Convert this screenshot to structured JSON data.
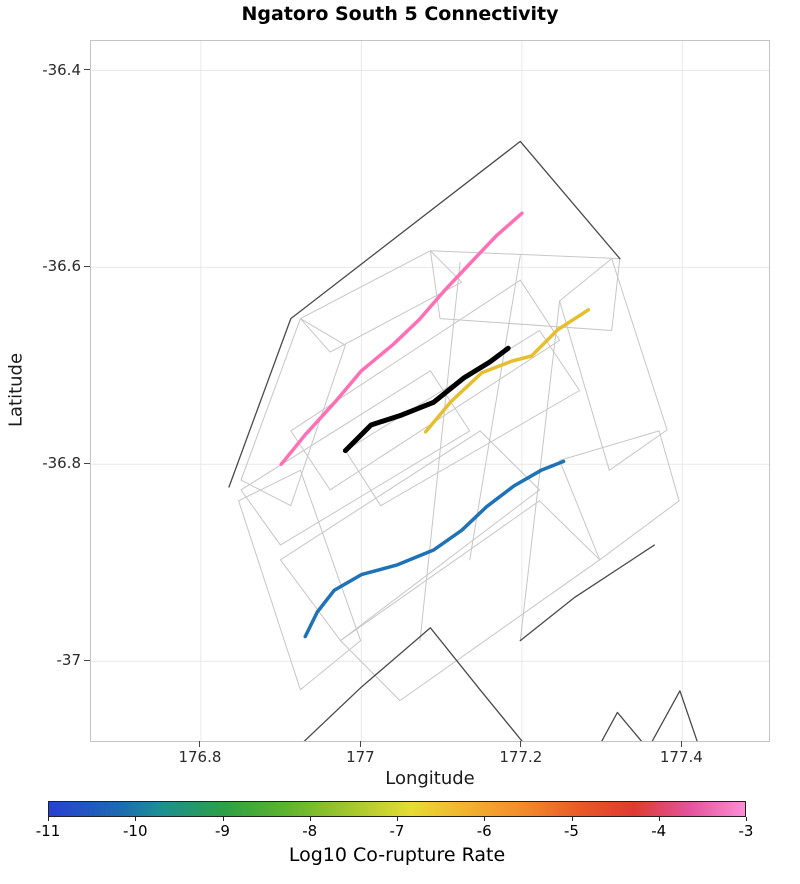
{
  "chart_data": {
    "type": "line",
    "title": "Ngatoro South 5 Connectivity",
    "axes": {
      "xlabel": "Longitude",
      "ylabel": "Latitude",
      "xlim": [
        176.663,
        177.508
      ],
      "ylim": [
        -37.081,
        -36.37
      ],
      "x_ticks": [
        {
          "value": 176.8,
          "label": "176.8"
        },
        {
          "value": 177.0,
          "label": "177"
        },
        {
          "value": 177.2,
          "label": "177.2"
        },
        {
          "value": 177.4,
          "label": "177.4"
        }
      ],
      "y_ticks": [
        {
          "value": -36.4,
          "label": "-36.4"
        },
        {
          "value": -36.6,
          "label": "-36.6"
        },
        {
          "value": -36.8,
          "label": "-36.8"
        },
        {
          "value": -37.0,
          "label": "-37"
        }
      ],
      "grid": true,
      "grid_color": "#e9e9e9"
    },
    "series": [
      {
        "name": "co-rupture-fault-pink",
        "color": "#ff6fb5",
        "width": 3.5,
        "points": [
          [
            176.9,
            -36.8
          ],
          [
            176.93,
            -36.77
          ],
          [
            176.968,
            -36.736
          ],
          [
            177.0,
            -36.705
          ],
          [
            177.04,
            -36.678
          ],
          [
            177.072,
            -36.653
          ],
          [
            177.103,
            -36.624
          ],
          [
            177.133,
            -36.598
          ],
          [
            177.168,
            -36.568
          ],
          [
            177.2,
            -36.545
          ]
        ]
      },
      {
        "name": "co-rupture-fault-gold",
        "color": "#e6bf2f",
        "width": 3.5,
        "points": [
          [
            177.08,
            -36.767
          ],
          [
            177.112,
            -36.736
          ],
          [
            177.15,
            -36.707
          ],
          [
            177.188,
            -36.695
          ],
          [
            177.212,
            -36.69
          ],
          [
            177.245,
            -36.663
          ],
          [
            177.283,
            -36.643
          ]
        ]
      },
      {
        "name": "co-rupture-fault-blue",
        "color": "#1f72b8",
        "width": 3.5,
        "points": [
          [
            176.93,
            -36.975
          ],
          [
            176.945,
            -36.95
          ],
          [
            176.966,
            -36.928
          ],
          [
            177.0,
            -36.912
          ],
          [
            177.045,
            -36.902
          ],
          [
            177.09,
            -36.887
          ],
          [
            177.125,
            -36.867
          ],
          [
            177.156,
            -36.843
          ],
          [
            177.19,
            -36.822
          ],
          [
            177.224,
            -36.806
          ],
          [
            177.252,
            -36.797
          ]
        ]
      },
      {
        "name": "target-fault-ngatoro-south-5",
        "color": "#000000",
        "width": 5,
        "points": [
          [
            176.98,
            -36.786
          ],
          [
            177.012,
            -36.76
          ],
          [
            177.05,
            -36.75
          ],
          [
            177.09,
            -36.737
          ],
          [
            177.128,
            -36.712
          ],
          [
            177.16,
            -36.696
          ],
          [
            177.183,
            -36.682
          ]
        ]
      }
    ],
    "outlines": {
      "dark_color": "#4a4a4a",
      "light_color": "#c6c6c6",
      "dark": [
        {
          "shape": "polyline",
          "points": [
            [
              176.835,
              -36.823
            ],
            [
              176.912,
              -36.652
            ],
            [
              177.198,
              -36.472
            ],
            [
              177.322,
              -36.591
            ]
          ]
        },
        {
          "shape": "polyline",
          "points": [
            [
              176.924,
              -37.085
            ],
            [
              176.999,
              -37.027
            ],
            [
              177.086,
              -36.966
            ],
            [
              177.148,
              -37.029
            ],
            [
              177.204,
              -37.085
            ]
          ]
        },
        {
          "shape": "polyline",
          "points": [
            [
              177.198,
              -36.979
            ],
            [
              177.266,
              -36.935
            ],
            [
              177.365,
              -36.882
            ]
          ]
        },
        {
          "shape": "polyline",
          "points": [
            [
              177.297,
              -37.085
            ],
            [
              177.319,
              -37.052
            ],
            [
              177.353,
              -37.085
            ]
          ]
        },
        {
          "shape": "polyline",
          "points": [
            [
              177.36,
              -37.085
            ],
            [
              177.397,
              -37.03
            ],
            [
              177.42,
              -37.085
            ]
          ]
        }
      ],
      "light": [
        {
          "shape": "polygon",
          "points": [
            [
              176.85,
              -36.816
            ],
            [
              176.924,
              -36.652
            ],
            [
              176.98,
              -36.679
            ],
            [
              176.912,
              -36.842
            ]
          ]
        },
        {
          "shape": "polygon",
          "points": [
            [
              176.924,
              -36.652
            ],
            [
              177.086,
              -36.583
            ],
            [
              177.125,
              -36.615
            ],
            [
              176.961,
              -36.686
            ]
          ]
        },
        {
          "shape": "polygon",
          "points": [
            [
              177.086,
              -36.583
            ],
            [
              177.322,
              -36.591
            ],
            [
              177.312,
              -36.664
            ],
            [
              177.098,
              -36.652
            ]
          ]
        },
        {
          "shape": "polygon",
          "points": [
            [
              177.312,
              -36.591
            ],
            [
              177.381,
              -36.765
            ],
            [
              177.309,
              -36.806
            ],
            [
              177.247,
              -36.634
            ]
          ]
        },
        {
          "shape": "polygon",
          "points": [
            [
              176.912,
              -36.766
            ],
            [
              177.198,
              -36.613
            ],
            [
              177.247,
              -36.674
            ],
            [
              176.961,
              -36.826
            ]
          ]
        },
        {
          "shape": "polygon",
          "points": [
            [
              176.98,
              -36.786
            ],
            [
              177.222,
              -36.664
            ],
            [
              177.272,
              -36.725
            ],
            [
              177.024,
              -36.842
            ]
          ]
        },
        {
          "shape": "polygon",
          "points": [
            [
              176.85,
              -36.826
            ],
            [
              177.086,
              -36.705
            ],
            [
              177.135,
              -36.766
            ],
            [
              176.899,
              -36.882
            ]
          ]
        },
        {
          "shape": "polygon",
          "points": [
            [
              176.847,
              -36.837
            ],
            [
              176.924,
              -37.029
            ],
            [
              176.999,
              -36.979
            ],
            [
              176.924,
              -36.806
            ]
          ]
        },
        {
          "shape": "polygon",
          "points": [
            [
              176.899,
              -36.897
            ],
            [
              177.148,
              -36.766
            ],
            [
              177.222,
              -36.826
            ],
            [
              176.974,
              -36.979
            ]
          ]
        },
        {
          "shape": "polygon",
          "points": [
            [
              176.974,
              -36.979
            ],
            [
              177.222,
              -36.837
            ],
            [
              177.297,
              -36.897
            ],
            [
              177.048,
              -37.04
            ]
          ]
        },
        {
          "shape": "polygon",
          "points": [
            [
              177.247,
              -36.796
            ],
            [
              177.371,
              -36.766
            ],
            [
              177.396,
              -36.837
            ],
            [
              177.297,
              -36.897
            ]
          ]
        },
        {
          "shape": "polyline",
          "points": [
            [
              177.123,
              -36.595
            ],
            [
              177.073,
              -36.979
            ]
          ]
        },
        {
          "shape": "polyline",
          "points": [
            [
              177.198,
              -36.588
            ],
            [
              177.135,
              -36.897
            ]
          ]
        },
        {
          "shape": "polyline",
          "points": [
            [
              177.247,
              -36.634
            ],
            [
              177.198,
              -36.979
            ]
          ]
        }
      ]
    },
    "colorbar": {
      "label": "Log10 Co-rupture Rate",
      "min": -11,
      "max": -3,
      "ticks": [
        -11,
        -10,
        -9,
        -8,
        -7,
        -6,
        -5,
        -4,
        -3
      ],
      "stops": [
        {
          "pos": 0.0,
          "color": "#2a3fd4"
        },
        {
          "pos": 0.1,
          "color": "#1c6ab2"
        },
        {
          "pos": 0.16,
          "color": "#1d8f93"
        },
        {
          "pos": 0.25,
          "color": "#2da046"
        },
        {
          "pos": 0.34,
          "color": "#5db32e"
        },
        {
          "pos": 0.44,
          "color": "#a9c92c"
        },
        {
          "pos": 0.52,
          "color": "#e6dc33"
        },
        {
          "pos": 0.6,
          "color": "#f2b32e"
        },
        {
          "pos": 0.68,
          "color": "#f28c2a"
        },
        {
          "pos": 0.76,
          "color": "#ea5a28"
        },
        {
          "pos": 0.84,
          "color": "#df3a30"
        },
        {
          "pos": 0.92,
          "color": "#e4539b"
        },
        {
          "pos": 1.0,
          "color": "#fb8ed6"
        }
      ]
    }
  }
}
